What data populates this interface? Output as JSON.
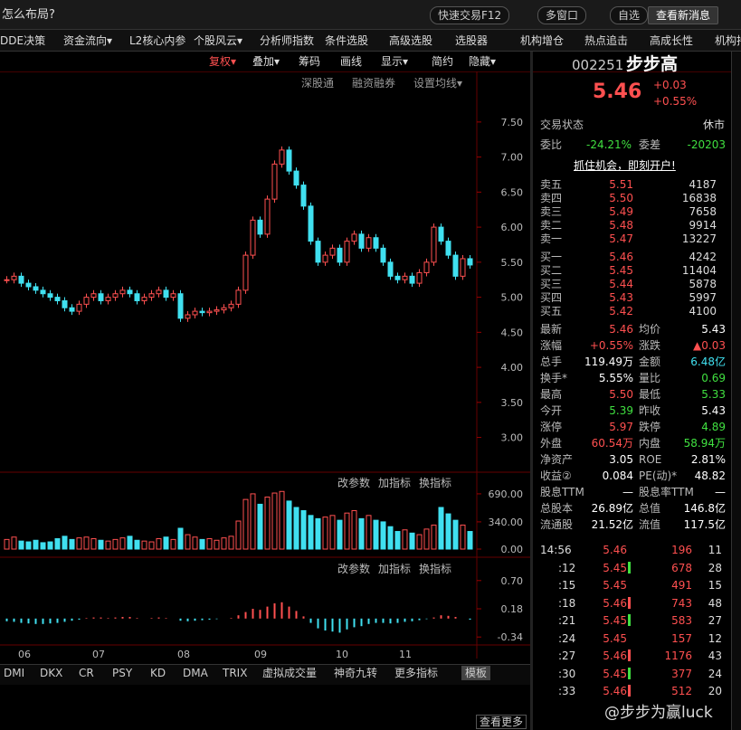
{
  "top_bar": {
    "title": "怎么布局?",
    "buttons": [
      "快速交易F12",
      "多窗口",
      "自选",
      "查看新消息"
    ]
  },
  "menu": [
    "DDE决策",
    "资金流向▾",
    "L2核心内参",
    "个股风云▾",
    "分析师指数",
    "条件选股",
    "高级选股",
    "选股器",
    "机构增仓",
    "热点追击",
    "高成长性",
    "机构持"
  ],
  "toolbar": [
    "复权▾",
    "叠加▾",
    "筹码",
    "画线",
    "显示▾",
    "简约",
    "隐藏▾"
  ],
  "price_panel": {
    "links": [
      "深股通",
      "融资融券",
      "设置均线▾"
    ],
    "ylim": [
      2.53,
      7.95
    ],
    "yticks": [
      {
        "value": 7.5,
        "label": "7.50"
      },
      {
        "value": 7,
        "label": "7.00"
      },
      {
        "value": 6.5,
        "label": "6.50"
      },
      {
        "value": 6,
        "label": "6.00"
      },
      {
        "value": 5.5,
        "label": "5.50"
      },
      {
        "value": 5,
        "label": "5.00"
      },
      {
        "value": 4.5,
        "label": "4.50"
      },
      {
        "value": 4,
        "label": "4.00"
      },
      {
        "value": 3.5,
        "label": "3.50"
      },
      {
        "value": 3,
        "label": "3.00"
      }
    ],
    "closes": [
      5.25,
      5.3,
      5.2,
      5.15,
      5.1,
      5.05,
      5.0,
      4.95,
      4.85,
      4.8,
      4.9,
      5.0,
      5.05,
      4.95,
      5.0,
      5.05,
      5.1,
      5.05,
      4.95,
      5.0,
      5.05,
      5.1,
      5.0,
      5.05,
      4.7,
      4.75,
      4.8,
      4.78,
      4.8,
      4.82,
      4.85,
      4.9,
      5.1,
      5.6,
      6.1,
      5.9,
      6.4,
      6.9,
      7.1,
      6.8,
      6.6,
      6.3,
      5.8,
      5.5,
      5.6,
      5.7,
      5.5,
      5.8,
      5.9,
      5.7,
      5.85,
      5.7,
      5.5,
      5.3,
      5.25,
      5.3,
      5.2,
      5.35,
      5.5,
      6.0,
      5.8,
      5.6,
      5.3,
      5.55,
      5.46
    ],
    "up_color": "#ff5050",
    "down_color": "#40e0f0"
  },
  "volume_panel": {
    "controls": [
      "改参数",
      "加指标",
      "换指标"
    ],
    "ylim": [
      0,
      870
    ],
    "yticks": [
      {
        "value": 690,
        "label": "690.00"
      },
      {
        "value": 340,
        "label": "340.00"
      },
      {
        "value": 0,
        "label": "0.00"
      }
    ],
    "values": [
      120,
      150,
      100,
      90,
      110,
      80,
      90,
      130,
      160,
      120,
      140,
      150,
      130,
      110,
      100,
      120,
      140,
      160,
      110,
      100,
      90,
      130,
      150,
      120,
      260,
      180,
      150,
      120,
      130,
      110,
      140,
      160,
      350,
      620,
      690,
      560,
      650,
      700,
      720,
      600,
      520,
      480,
      420,
      380,
      400,
      420,
      360,
      450,
      480,
      380,
      420,
      360,
      340,
      280,
      220,
      240,
      200,
      180,
      250,
      300,
      520,
      440,
      360,
      300,
      220
    ]
  },
  "macd_panel": {
    "controls": [
      "改参数",
      "加指标",
      "换指标"
    ],
    "ylim": [
      -0.47,
      1.03
    ],
    "yticks": [
      {
        "value": 0.7,
        "label": "0.70"
      },
      {
        "value": 0.18,
        "label": "0.18"
      },
      {
        "value": -0.34,
        "label": "-0.34"
      }
    ],
    "values": [
      -0.05,
      -0.06,
      -0.08,
      -0.09,
      -0.1,
      -0.1,
      -0.09,
      -0.08,
      -0.06,
      -0.04,
      -0.02,
      0.01,
      0.02,
      0.02,
      0.01,
      0.02,
      0.03,
      0.03,
      0.01,
      0.0,
      0.01,
      0.02,
      0.01,
      0.0,
      -0.04,
      -0.05,
      -0.04,
      -0.03,
      -0.02,
      -0.01,
      0.0,
      0.01,
      0.06,
      0.12,
      0.18,
      0.16,
      0.22,
      0.28,
      0.3,
      0.22,
      0.14,
      0.04,
      -0.08,
      -0.18,
      -0.22,
      -0.24,
      -0.26,
      -0.2,
      -0.16,
      -0.14,
      -0.1,
      -0.08,
      -0.08,
      -0.09,
      -0.08,
      -0.06,
      -0.05,
      -0.03,
      -0.01,
      0.02,
      0.06,
      0.05,
      0.03,
      0.0,
      -0.02
    ]
  },
  "x_axis": [
    "06",
    "07",
    "08",
    "09",
    "10",
    "11"
  ],
  "indicator_tabs": [
    "DMI",
    "DKX",
    "CR",
    "PSY",
    "KD",
    "DMA",
    "TRIX",
    "虚拟成交量",
    "神奇九转",
    "更多指标",
    "模板"
  ],
  "more_button": "查看更多",
  "watermark": "@步步为赢luck",
  "quote": {
    "code": "002251",
    "name": "步步高",
    "price": "5.46",
    "change": "+0.03",
    "change_pct": "+0.55%",
    "status_label": "交易状态",
    "status": "休市",
    "ratio_label": "委比",
    "ratio": "-24.21%",
    "diff_label": "委差",
    "diff": "-20203",
    "promo": "抓住机会，即刻开户!",
    "asks": [
      [
        "卖五",
        "5.51",
        "4187"
      ],
      [
        "卖四",
        "5.50",
        "16838"
      ],
      [
        "卖三",
        "5.49",
        "7658"
      ],
      [
        "卖二",
        "5.48",
        "9914"
      ],
      [
        "卖一",
        "5.47",
        "13227"
      ]
    ],
    "bids": [
      [
        "买一",
        "5.46",
        "4242"
      ],
      [
        "买二",
        "5.45",
        "11404"
      ],
      [
        "买三",
        "5.44",
        "5878"
      ],
      [
        "买四",
        "5.43",
        "5997"
      ],
      [
        "买五",
        "5.42",
        "4100"
      ]
    ],
    "stats": [
      [
        {
          "label": "最新",
          "value": "5.46",
          "color": "#ff5050"
        },
        {
          "label": "均价",
          "value": "5.43",
          "color": "#ffffff"
        }
      ],
      [
        {
          "label": "涨幅",
          "value": "+0.55%",
          "color": "#ff5050"
        },
        {
          "label": "涨跌",
          "value": "▲0.03",
          "color": "#ff5050"
        }
      ],
      [
        {
          "label": "总手",
          "value": "119.49万",
          "color": "#ffffff"
        },
        {
          "label": "金额",
          "value": "6.48亿",
          "color": "#40e0f0"
        }
      ],
      [
        {
          "label": "换手*",
          "value": "5.55%",
          "color": "#ffffff"
        },
        {
          "label": "量比",
          "value": "0.69",
          "color": "#40e040"
        }
      ],
      [
        {
          "label": "最高",
          "value": "5.50",
          "color": "#ff5050"
        },
        {
          "label": "最低",
          "value": "5.33",
          "color": "#40e040"
        }
      ],
      [
        {
          "label": "今开",
          "value": "5.39",
          "color": "#40e040"
        },
        {
          "label": "昨收",
          "value": "5.43",
          "color": "#ffffff"
        }
      ],
      [
        {
          "label": "涨停",
          "value": "5.97",
          "color": "#ff5050"
        },
        {
          "label": "跌停",
          "value": "4.89",
          "color": "#40e040"
        }
      ],
      [
        {
          "label": "外盘",
          "value": "60.54万",
          "color": "#ff5050"
        },
        {
          "label": "内盘",
          "value": "58.94万",
          "color": "#40e040"
        }
      ],
      [
        {
          "label": "净资产",
          "value": "3.05",
          "color": "#ffffff"
        },
        {
          "label": "ROE",
          "value": "2.81%",
          "color": "#ffffff"
        }
      ],
      [
        {
          "label": "收益②",
          "value": "0.084",
          "color": "#ffffff"
        },
        {
          "label": "PE(动)*",
          "value": "48.82",
          "color": "#ffffff"
        }
      ],
      [
        {
          "label": "股息TTM",
          "value": "—",
          "color": "#ffffff"
        },
        {
          "label": "股息率TTM",
          "value": "—",
          "color": "#ffffff"
        }
      ],
      [
        {
          "label": "总股本",
          "value": "26.89亿",
          "color": "#ffffff"
        },
        {
          "label": "总值",
          "value": "146.8亿",
          "color": "#ffffff"
        }
      ],
      [
        {
          "label": "流通股",
          "value": "21.52亿",
          "color": "#ffffff"
        },
        {
          "label": "流值",
          "value": "117.5亿",
          "color": "#ffffff"
        }
      ]
    ],
    "ticks": [
      {
        "time": "14:56",
        "price": "5.46",
        "dir": null,
        "volume": "196",
        "count": "11"
      },
      {
        "time": ":12",
        "price": "5.45",
        "dir": "down",
        "volume": "678",
        "count": "28"
      },
      {
        "time": ":15",
        "price": "5.45",
        "dir": null,
        "volume": "491",
        "count": "15"
      },
      {
        "time": ":18",
        "price": "5.46",
        "dir": "up",
        "volume": "743",
        "count": "48"
      },
      {
        "time": ":21",
        "price": "5.45",
        "dir": "down",
        "volume": "583",
        "count": "27"
      },
      {
        "time": ":24",
        "price": "5.45",
        "dir": null,
        "volume": "157",
        "count": "12"
      },
      {
        "time": ":27",
        "price": "5.46",
        "dir": "up",
        "volume": "1176",
        "count": "43"
      },
      {
        "time": ":30",
        "price": "5.45",
        "dir": "down",
        "volume": "377",
        "count": "24"
      },
      {
        "time": ":33",
        "price": "5.46",
        "dir": "up",
        "volume": "512",
        "count": "20"
      }
    ]
  }
}
